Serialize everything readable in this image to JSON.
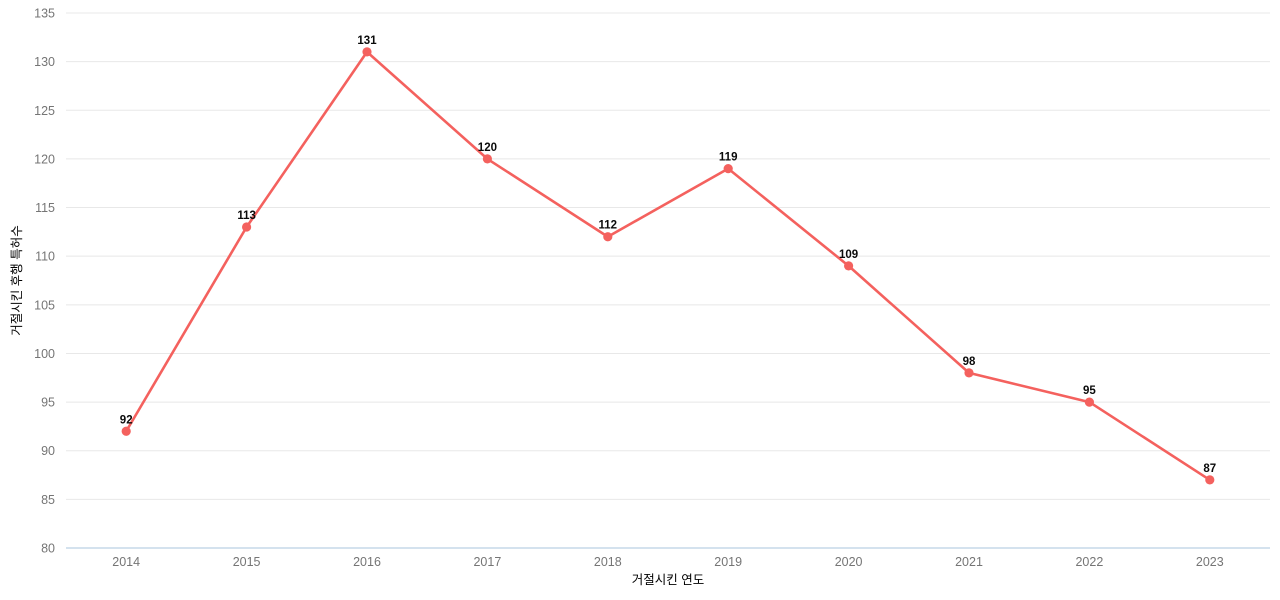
{
  "chart_data": {
    "type": "line",
    "title": "",
    "categories": [
      "2014",
      "2015",
      "2016",
      "2017",
      "2018",
      "2019",
      "2020",
      "2021",
      "2022",
      "2023"
    ],
    "series": [
      {
        "name": "거절시킨 후행 특허수",
        "values": [
          92,
          113,
          131,
          120,
          112,
          119,
          109,
          98,
          95,
          87
        ]
      }
    ],
    "xlabel": "거절시킨 연도",
    "ylabel": "거절시킨 후행 특허수",
    "ylim": [
      80,
      135
    ],
    "ytick_step": 5,
    "yticks": [
      80,
      85,
      90,
      95,
      100,
      105,
      110,
      115,
      120,
      125,
      130,
      135
    ],
    "grid": true,
    "legend_position": "none",
    "data_labels_shown": true,
    "colors": {
      "line": "#F4615E",
      "marker": "#F4615E",
      "gridline": "#E8E8E8",
      "axis_line": "#C5D9E8",
      "tick_label": "#757575",
      "axis_title": "#757575",
      "data_label": "#0A0A0A",
      "background": "#FFFFFF"
    }
  }
}
